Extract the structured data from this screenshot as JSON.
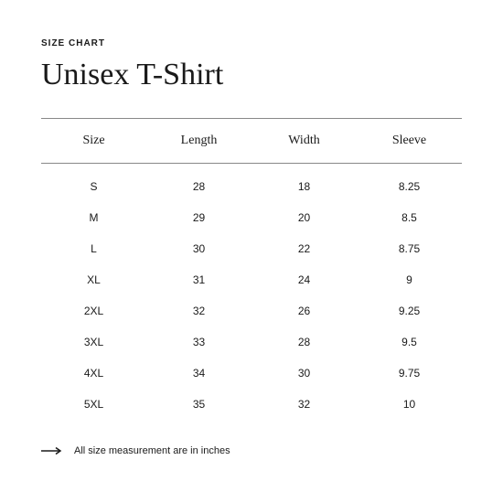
{
  "label": "SIZE CHART",
  "title": "Unisex T-Shirt",
  "columns": [
    "Size",
    "Length",
    "Width",
    "Sleeve"
  ],
  "rows": [
    [
      "S",
      "28",
      "18",
      "8.25"
    ],
    [
      "M",
      "29",
      "20",
      "8.5"
    ],
    [
      "L",
      "30",
      "22",
      "8.75"
    ],
    [
      "XL",
      "31",
      "24",
      "9"
    ],
    [
      "2XL",
      "32",
      "26",
      "9.25"
    ],
    [
      "3XL",
      "33",
      "28",
      "9.5"
    ],
    [
      "4XL",
      "34",
      "30",
      "9.75"
    ],
    [
      "5XL",
      "35",
      "32",
      "10"
    ]
  ],
  "note": "All size measurement are in inches",
  "colors": {
    "background": "#ffffff",
    "text": "#1a1a1a",
    "border": "#888888"
  }
}
